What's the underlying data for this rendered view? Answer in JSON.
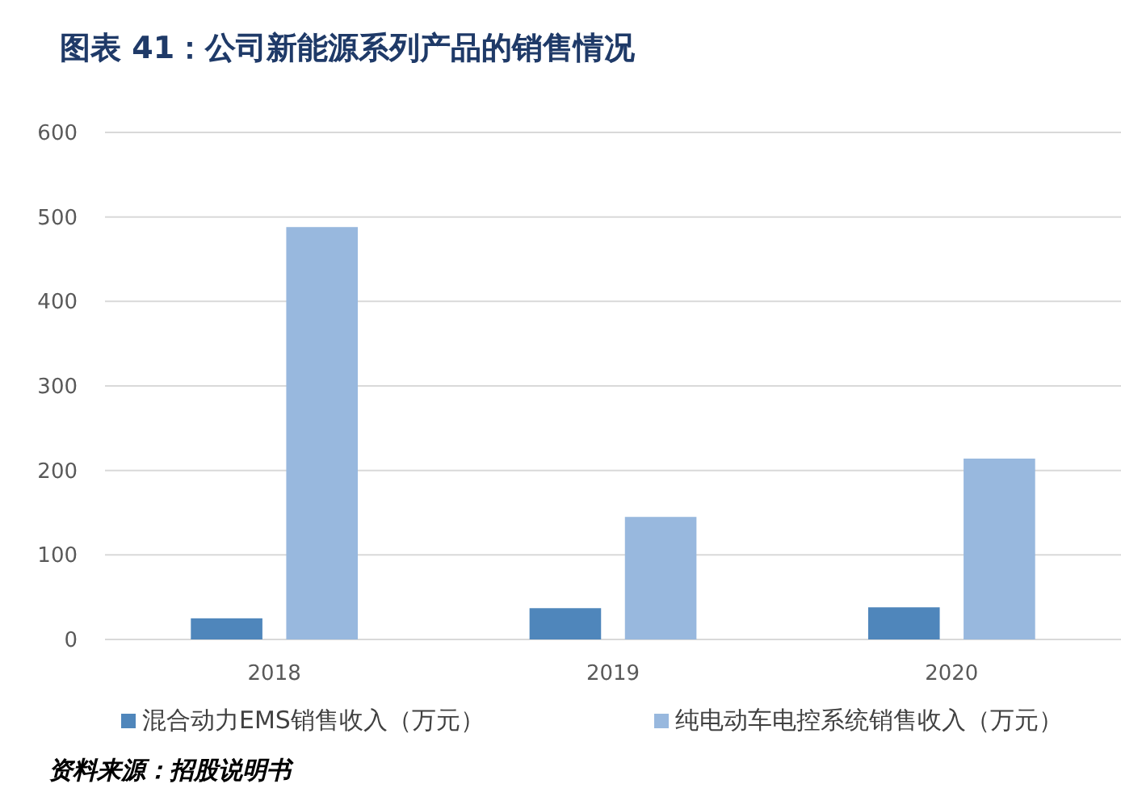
{
  "chart_data": {
    "type": "bar",
    "title": "图表 41：公司新能源系列产品的销售情况",
    "categories": [
      "2018",
      "2019",
      "2020"
    ],
    "series": [
      {
        "name": "混合动力EMS销售收入（万元）",
        "color": "#4f86bb",
        "values": [
          25,
          37,
          38
        ]
      },
      {
        "name": "纯电动车电控系统销售收入（万元）",
        "color": "#98b8de",
        "values": [
          488,
          145,
          214
        ]
      }
    ],
    "ylim": [
      0,
      600
    ],
    "yticks": [
      0,
      100,
      200,
      300,
      400,
      500,
      600
    ],
    "grid": "y",
    "legend": "bottom",
    "annotations": [
      "资料来源：招股说明书"
    ]
  }
}
